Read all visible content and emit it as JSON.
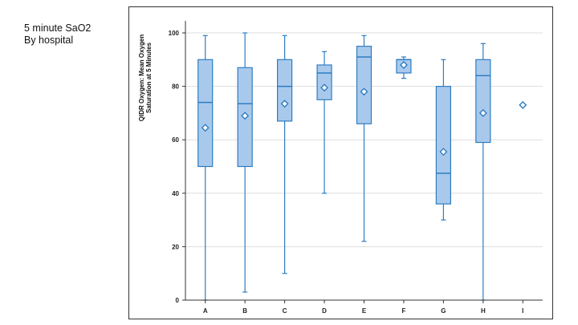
{
  "slide": {
    "title_line1": "5 minute SaO2",
    "title_line2": "By hospital"
  },
  "chart_data": {
    "type": "box",
    "ylabel_line1": "QIDR Oxygen: Mean Oxygen",
    "ylabel_line2": "Saturation at 5 Minutes",
    "xlabel": "",
    "ylim": [
      0,
      100
    ],
    "yticks": [
      0,
      20,
      40,
      60,
      80,
      100
    ],
    "grid": true,
    "legend": "none",
    "colors": {
      "box_fill": "#a9c9ec",
      "box_stroke": "#2e7dc1",
      "grid": "#dddddd",
      "axis": "#333333"
    },
    "categories": [
      "A",
      "B",
      "C",
      "D",
      "E",
      "F",
      "G",
      "H",
      "I"
    ],
    "boxes": [
      {
        "category": "A",
        "min": 0,
        "q1": 50,
        "median": 74,
        "q3": 90,
        "max": 99,
        "mean": 64.5
      },
      {
        "category": "B",
        "min": 3,
        "q1": 50,
        "median": 73.5,
        "q3": 87,
        "max": 100,
        "mean": 69
      },
      {
        "category": "C",
        "min": 10,
        "q1": 67,
        "median": 80,
        "q3": 90,
        "max": 99,
        "mean": 73.5
      },
      {
        "category": "D",
        "min": 40,
        "q1": 75,
        "median": 85,
        "q3": 88,
        "max": 93,
        "mean": 79.5
      },
      {
        "category": "E",
        "min": 22,
        "q1": 66,
        "median": 91,
        "q3": 95,
        "max": 99,
        "mean": 78
      },
      {
        "category": "F",
        "min": 83,
        "q1": 85,
        "median": 90,
        "q3": 90,
        "max": 91,
        "mean": 88
      },
      {
        "category": "G",
        "min": 30,
        "q1": 36,
        "median": 47.5,
        "q3": 80,
        "max": 90,
        "mean": 55.5
      },
      {
        "category": "H",
        "min": 0,
        "q1": 59,
        "median": 84,
        "q3": 90,
        "max": 96,
        "mean": 70
      },
      {
        "category": "I",
        "min": null,
        "q1": null,
        "median": null,
        "q3": null,
        "max": null,
        "mean": 73
      }
    ]
  }
}
